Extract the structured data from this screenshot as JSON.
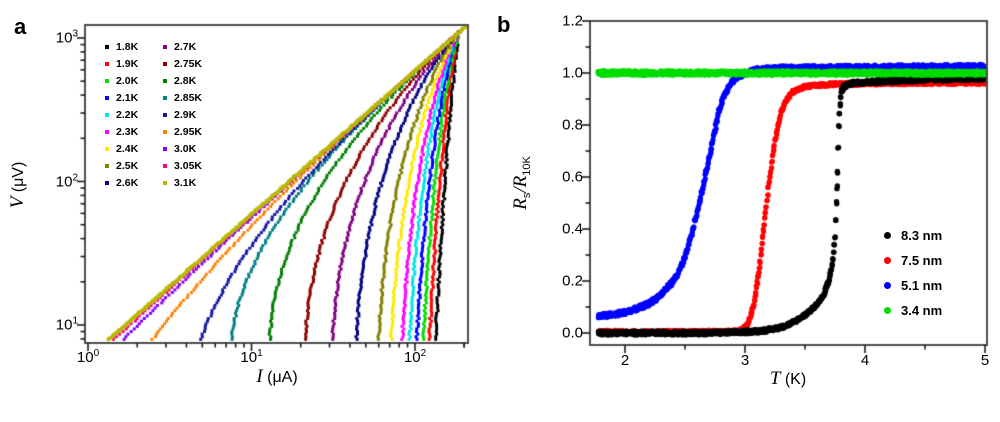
{
  "figure": {
    "background": "#ffffff",
    "panel_a": {
      "label": "a",
      "xlabel": {
        "var": "I",
        "rest": " (μA)"
      },
      "ylabel": {
        "var": "V",
        "rest": " (μV)"
      },
      "x_tick_labels": [
        {
          "base": "10",
          "exp": "0"
        },
        {
          "base": "10",
          "exp": "1"
        },
        {
          "base": "10",
          "exp": "2"
        }
      ],
      "y_tick_labels": [
        {
          "base": "10",
          "exp": "1"
        },
        {
          "base": "10",
          "exp": "2"
        },
        {
          "base": "10",
          "exp": "3"
        }
      ],
      "legend": [
        {
          "label": "1.8K",
          "color": "#000000"
        },
        {
          "label": "1.9K",
          "color": "#FF0000"
        },
        {
          "label": "2.0K",
          "color": "#00DD00"
        },
        {
          "label": "2.1K",
          "color": "#0000FF"
        },
        {
          "label": "2.2K",
          "color": "#00E5E5"
        },
        {
          "label": "2.3K",
          "color": "#FF00FF"
        },
        {
          "label": "2.4K",
          "color": "#FFE800"
        },
        {
          "label": "2.5K",
          "color": "#808000"
        },
        {
          "label": "2.6K",
          "color": "#000080"
        },
        {
          "label": "2.7K",
          "color": "#800080"
        },
        {
          "label": "2.75K",
          "color": "#8B0000"
        },
        {
          "label": "2.8K",
          "color": "#008000"
        },
        {
          "label": "2.85K",
          "color": "#008080"
        },
        {
          "label": "2.9K",
          "color": "#1515A3"
        },
        {
          "label": "2.95K",
          "color": "#FF8000"
        },
        {
          "label": "3.0K",
          "color": "#8000FF"
        },
        {
          "label": "3.05K",
          "color": "#FF0080"
        },
        {
          "label": "3.1K",
          "color": "#B9B900"
        }
      ]
    },
    "panel_b": {
      "label": "b",
      "xlabel": {
        "var": "T",
        "rest": " (K)"
      },
      "ylabel": {
        "var1": "R",
        "sub1": "s",
        "slash": "/",
        "var2": "R",
        "sub2": "10K"
      },
      "x_tick_labels": [
        "2",
        "3",
        "4",
        "5"
      ],
      "y_tick_labels": [
        "0.0",
        "0.2",
        "0.4",
        "0.6",
        "0.8",
        "1.0",
        "1.2"
      ],
      "legend": [
        {
          "label": "8.3 nm",
          "color": "#000000"
        },
        {
          "label": "7.5 nm",
          "color": "#FF0000"
        },
        {
          "label": "5.1 nm",
          "color": "#0000FF"
        },
        {
          "label": "3.4 nm",
          "color": "#00DD00"
        }
      ]
    }
  },
  "chart_data": [
    {
      "panel": "a",
      "type": "scatter",
      "x_scale": "log",
      "y_scale": "log",
      "title": "",
      "xlabel": "I (μA)",
      "ylabel": "V (μV)",
      "xlim": [
        1,
        210
      ],
      "ylim": [
        7.5,
        1230
      ],
      "x_major_ticks": [
        1,
        10,
        100
      ],
      "y_major_ticks": [
        10,
        100,
        1000
      ],
      "grid": false,
      "legend_position": "upper-left-inside",
      "ohmic_line_R_uV_per_uA": 5.9,
      "convergence_point_uA_uV": [
        186,
        1100
      ],
      "series": [
        {
          "label": "1.8K",
          "color": "#000000",
          "takeoff_current_uA": 134,
          "ohmic": false
        },
        {
          "label": "1.9K",
          "color": "#FF0000",
          "takeoff_current_uA": 123,
          "ohmic": false
        },
        {
          "label": "2.0K",
          "color": "#00DD00",
          "takeoff_current_uA": 113,
          "ohmic": false
        },
        {
          "label": "2.1K",
          "color": "#0000FF",
          "takeoff_current_uA": 103,
          "ohmic": false
        },
        {
          "label": "2.2K",
          "color": "#00E5E5",
          "takeoff_current_uA": 93,
          "ohmic": false
        },
        {
          "label": "2.3K",
          "color": "#FF00FF",
          "takeoff_current_uA": 84,
          "ohmic": false
        },
        {
          "label": "2.4K",
          "color": "#FFE800",
          "takeoff_current_uA": 72,
          "ohmic": false
        },
        {
          "label": "2.5K",
          "color": "#808000",
          "takeoff_current_uA": 60,
          "ohmic": false
        },
        {
          "label": "2.6K",
          "color": "#000080",
          "takeoff_current_uA": 44,
          "ohmic": false
        },
        {
          "label": "2.7K",
          "color": "#800080",
          "takeoff_current_uA": 31.5,
          "ohmic": false
        },
        {
          "label": "2.75K",
          "color": "#8B0000",
          "takeoff_current_uA": 21.5,
          "ohmic": false
        },
        {
          "label": "2.8K",
          "color": "#008000",
          "takeoff_current_uA": 13,
          "ohmic": false
        },
        {
          "label": "2.85K",
          "color": "#008080",
          "takeoff_current_uA": 7.6,
          "ohmic": false
        },
        {
          "label": "2.9K",
          "color": "#1515A3",
          "takeoff_current_uA": 5.0,
          "ohmic": false
        },
        {
          "label": "2.95K",
          "color": "#FF8000",
          "takeoff_current_uA": 2.6,
          "ohmic": false
        },
        {
          "label": "3.0K",
          "color": "#8000FF",
          "takeoff_current_uA": 1.75,
          "ohmic": false
        },
        {
          "label": "3.05K",
          "color": "#FF0080",
          "takeoff_current_uA": 1.55,
          "ohmic": false
        },
        {
          "label": "3.1K",
          "color": "#B9B900",
          "takeoff_current_uA": 1.42,
          "ohmic": true
        }
      ]
    },
    {
      "panel": "b",
      "type": "scatter",
      "x_scale": "linear",
      "y_scale": "linear",
      "title": "",
      "xlabel": "T (K)",
      "ylabel": "Rs/R10K",
      "xlim": [
        1.71,
        5.02
      ],
      "ylim": [
        -0.046,
        1.2
      ],
      "x_ticks": [
        2,
        3,
        4,
        5
      ],
      "x_minor_ticks": [
        2.5,
        3.5,
        4.5
      ],
      "y_ticks": [
        0.0,
        0.2,
        0.4,
        0.6,
        0.8,
        1.0,
        1.2
      ],
      "y_minor_ticks": [
        0.1,
        0.3,
        0.5,
        0.7,
        0.9,
        1.1
      ],
      "grid": false,
      "legend_position": "right-inside",
      "series": [
        {
          "label": "8.3 nm",
          "color": "#000000",
          "z": 2,
          "spread": 0.007,
          "radius": 2.7,
          "points": [
            [
              1.78,
              0.0
            ],
            [
              2.2,
              0.0
            ],
            [
              2.6,
              0.0
            ],
            [
              2.9,
              0.002
            ],
            [
              3.0,
              0.004
            ],
            [
              3.1,
              0.007
            ],
            [
              3.2,
              0.012
            ],
            [
              3.3,
              0.022
            ],
            [
              3.4,
              0.04
            ],
            [
              3.5,
              0.07
            ],
            [
              3.58,
              0.1
            ],
            [
              3.65,
              0.14
            ],
            [
              3.7,
              0.2
            ],
            [
              3.73,
              0.28
            ],
            [
              3.75,
              0.37
            ],
            [
              3.762,
              0.5
            ],
            [
              3.772,
              0.62
            ],
            [
              3.782,
              0.8
            ],
            [
              3.792,
              0.88
            ],
            [
              3.802,
              0.93
            ],
            [
              3.83,
              0.95
            ],
            [
              3.9,
              0.962
            ],
            [
              4.1,
              0.968
            ],
            [
              4.5,
              0.975
            ],
            [
              5.0,
              0.98
            ]
          ]
        },
        {
          "label": "7.5 nm",
          "color": "#FF0000",
          "z": 1,
          "spread": 0.006,
          "radius": 2.6,
          "points": [
            [
              1.78,
              0.004
            ],
            [
              2.5,
              0.004
            ],
            [
              2.9,
              0.006
            ],
            [
              2.98,
              0.012
            ],
            [
              3.03,
              0.04
            ],
            [
              3.08,
              0.12
            ],
            [
              3.12,
              0.25
            ],
            [
              3.16,
              0.42
            ],
            [
              3.2,
              0.58
            ],
            [
              3.25,
              0.74
            ],
            [
              3.3,
              0.85
            ],
            [
              3.35,
              0.9
            ],
            [
              3.4,
              0.928
            ],
            [
              3.5,
              0.948
            ],
            [
              3.7,
              0.956
            ],
            [
              4.0,
              0.96
            ],
            [
              4.5,
              0.962
            ],
            [
              5.0,
              0.963
            ]
          ]
        },
        {
          "label": "5.1 nm",
          "color": "#0000FF",
          "z": 3,
          "spread": 0.009,
          "radius": 2.6,
          "points": [
            [
              1.78,
              0.065
            ],
            [
              1.9,
              0.07
            ],
            [
              2.0,
              0.08
            ],
            [
              2.1,
              0.094
            ],
            [
              2.2,
              0.113
            ],
            [
              2.3,
              0.148
            ],
            [
              2.4,
              0.2
            ],
            [
              2.45,
              0.235
            ],
            [
              2.5,
              0.29
            ],
            [
              2.55,
              0.37
            ],
            [
              2.6,
              0.46
            ],
            [
              2.65,
              0.56
            ],
            [
              2.7,
              0.67
            ],
            [
              2.75,
              0.78
            ],
            [
              2.78,
              0.85
            ],
            [
              2.82,
              0.91
            ],
            [
              2.87,
              0.955
            ],
            [
              2.92,
              0.98
            ],
            [
              3.0,
              1.0
            ],
            [
              3.1,
              1.012
            ],
            [
              3.3,
              1.018
            ],
            [
              3.7,
              1.02
            ],
            [
              4.2,
              1.022
            ],
            [
              5.0,
              1.025
            ]
          ]
        },
        {
          "label": "3.4 nm",
          "color": "#00DD00",
          "z": 4,
          "spread": 0.007,
          "radius": 2.9,
          "points": [
            [
              1.78,
              1.0
            ],
            [
              2.5,
              1.0
            ],
            [
              3.0,
              1.0
            ],
            [
              3.5,
              1.0
            ],
            [
              4.0,
              1.0
            ],
            [
              4.5,
              1.0
            ],
            [
              5.0,
              1.0
            ]
          ]
        }
      ]
    }
  ]
}
